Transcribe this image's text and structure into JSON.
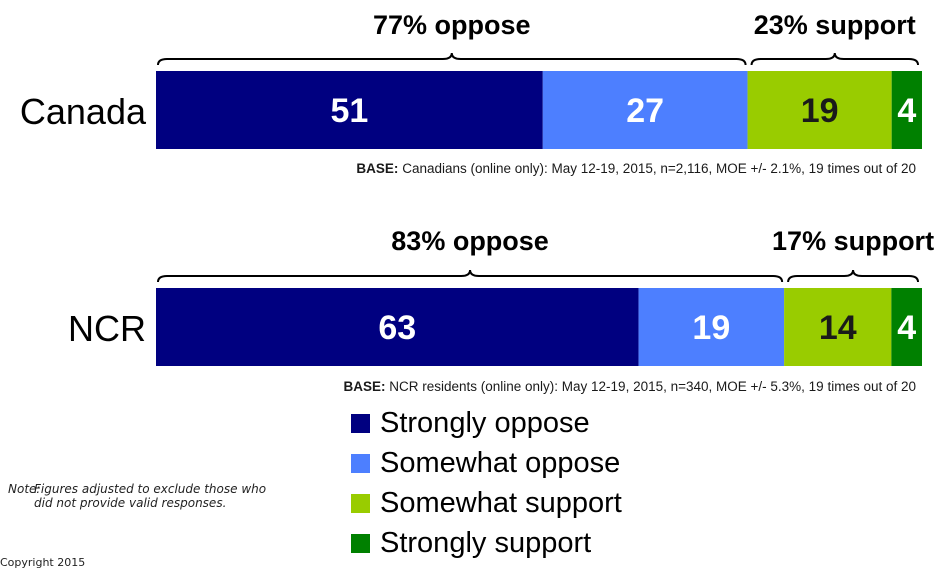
{
  "chart_data": {
    "type": "bar",
    "orientation": "horizontal",
    "stacked": true,
    "categories": [
      "Canada",
      "NCR"
    ],
    "series": [
      {
        "name": "Strongly oppose",
        "values": [
          51,
          63
        ],
        "color": "#000080"
      },
      {
        "name": "Somewhat oppose",
        "values": [
          27,
          19
        ],
        "color": "#4d7fff"
      },
      {
        "name": "Somewhat support",
        "values": [
          19,
          14
        ],
        "color": "#99cc00"
      },
      {
        "name": "Strongly support",
        "values": [
          4,
          4
        ],
        "color": "#008000"
      }
    ],
    "data_label_colors": [
      "#ffffff",
      "#ffffff",
      "#1a1a1a",
      "#ffffff"
    ],
    "groups": [
      {
        "oppose_label": "77% oppose",
        "support_label": "23% support",
        "base_bold": "BASE:",
        "base_text": " Canadians (online only): May 12-19, 2015, n=2,116, MOE +/- 2.1%, 19 times out of 20"
      },
      {
        "oppose_label": "83% oppose",
        "support_label": "17% support",
        "base_bold": "BASE:",
        "base_text": " NCR residents (online only): May 12-19, 2015, n=340, MOE +/- 5.3%, 19 times out of 20"
      }
    ],
    "legend_placement": "bottom-center",
    "grid": false
  },
  "note": {
    "label": "Note:",
    "text": "Figures adjusted to exclude those who did not provide valid responses."
  },
  "copyright": "Copyright 2015"
}
